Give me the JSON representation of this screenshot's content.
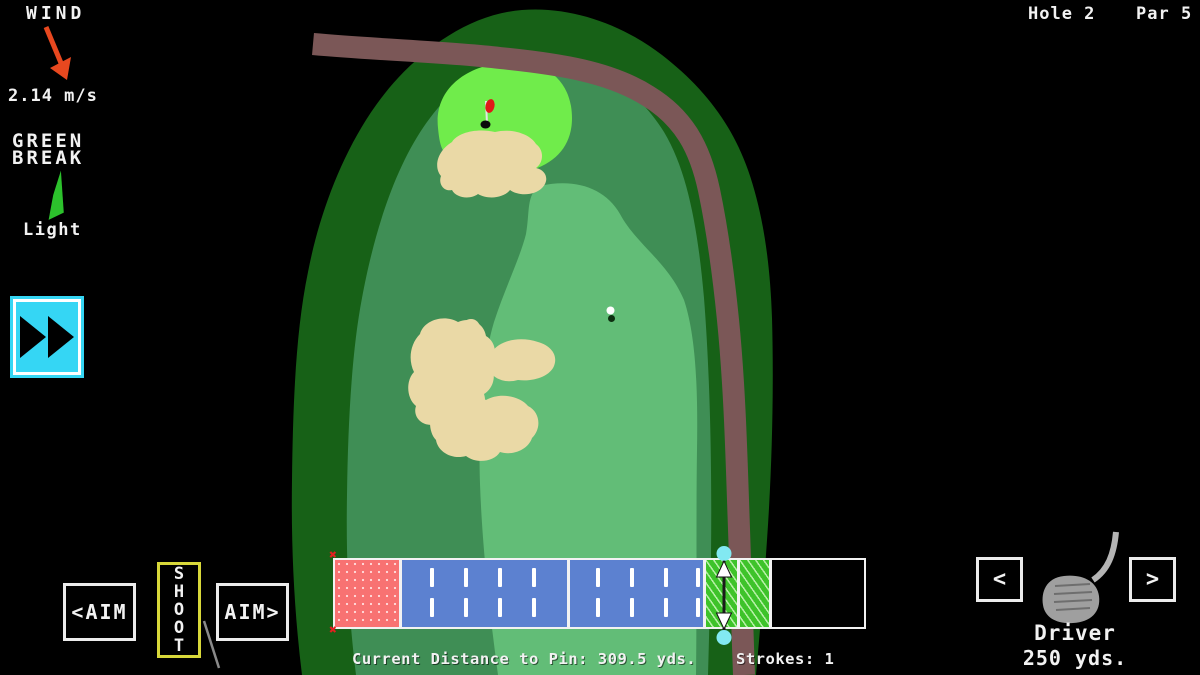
{
  "hud": {
    "wind_label": "WIND",
    "wind_speed": "2.14 m/s",
    "green_break_line1": "GREEN",
    "green_break_line2": "BREAK",
    "green_break_value": "Light",
    "hole_label": "Hole 2",
    "par_label": "Par 5"
  },
  "controls": {
    "aim_left_label": "<AIM",
    "shoot_label": "SHOOT",
    "aim_right_label": "AIM>",
    "club_prev_label": "<",
    "club_next_label": ">",
    "club_name": "Driver",
    "club_distance": "250 yds."
  },
  "status_bar": {
    "distance_text": "Current Distance to Pin: 309.5 yds.",
    "strokes_text": "Strokes: 1"
  },
  "icons": {
    "wind_arrow": "arrow-down-right",
    "green_break_arrow": "break-direction-arrow",
    "fast_forward": "double-play-triangles",
    "club": "golf-club-head",
    "flag": "flagstick-with-hole",
    "ball": "golf-ball"
  },
  "colors": {
    "accent_cyan": "#35d6f4",
    "slider_cyan": "#82e9f2",
    "shoot_border_yellow": "#d8d83a",
    "wind_arrow_red": "#e8481f",
    "break_arrow_green": "#2cc12c",
    "bar_red": "#f87272",
    "bar_blue": "#5c81d0",
    "bar_green": "#3ec32a",
    "rough_dark": "#176117",
    "fairway_mid": "#3f8e55",
    "fairway_light": "#62bd77",
    "putting_green": "#70ec4b",
    "bunker_sand": "#ead9a6",
    "cart_path_brown": "#7b5757",
    "flag_red": "#e01818"
  }
}
